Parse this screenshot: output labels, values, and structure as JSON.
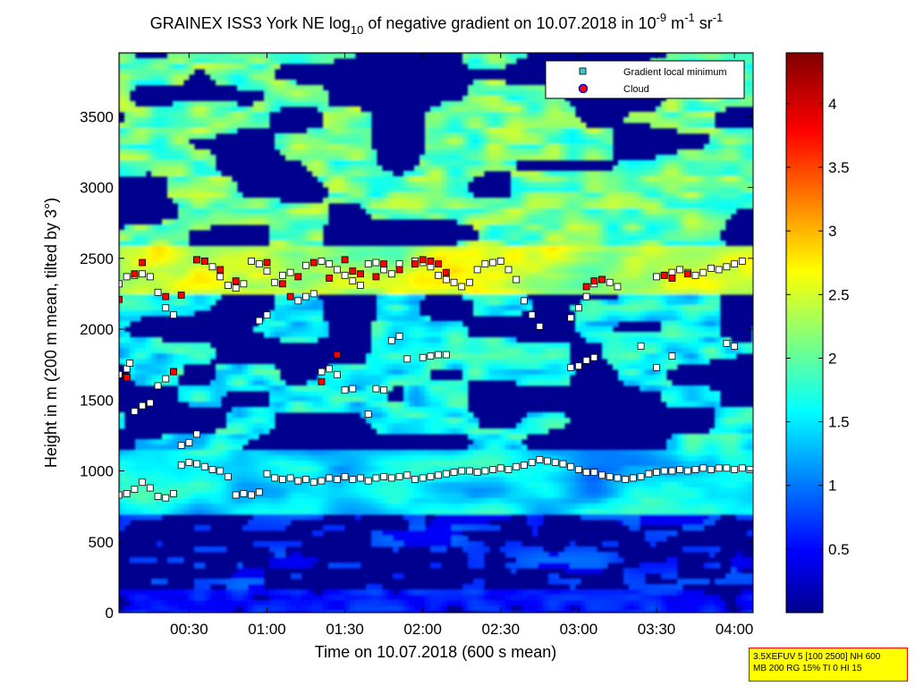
{
  "chart_data": {
    "type": "heatmap",
    "title": {
      "prefix": "GRAINEX ISS3 York NE log",
      "prefix_sub": "10",
      "middle": " of negative gradient on 10.07.2018 in 10",
      "exp1": "-9",
      "unit1": " m",
      "exp2": "-1",
      "unit2": " sr",
      "exp3": "-1"
    },
    "xlabel": "Time on 10.07.2018 (600 s mean)",
    "ylabel": "Height in m (200 m mean, tilted by 3°)",
    "x_range_hours": [
      0.05,
      4.12
    ],
    "x_ticks": [
      {
        "value": 0.5,
        "label": "00:30"
      },
      {
        "value": 1.0,
        "label": "01:00"
      },
      {
        "value": 1.5,
        "label": "01:30"
      },
      {
        "value": 2.0,
        "label": "02:00"
      },
      {
        "value": 2.5,
        "label": "02:30"
      },
      {
        "value": 3.0,
        "label": "03:00"
      },
      {
        "value": 3.5,
        "label": "03:30"
      },
      {
        "value": 4.0,
        "label": "04:00"
      }
    ],
    "ylim": [
      0,
      3950
    ],
    "y_ticks": [
      0,
      500,
      1000,
      1500,
      2000,
      2500,
      3000,
      3500
    ],
    "colorbar": {
      "range": [
        0,
        4.4
      ],
      "ticks": [
        0.5,
        1,
        1.5,
        2,
        2.5,
        3,
        3.5,
        4
      ],
      "colormap": "jet"
    },
    "legend": {
      "location": "top-right",
      "entries": [
        {
          "label": "Gradient local minimum",
          "color": "#33cccc",
          "marker": "square"
        },
        {
          "label": "Cloud",
          "color": "#ff0000",
          "edge": "#0000ff",
          "marker": "circle"
        }
      ]
    },
    "series": [
      {
        "name": "Gradient local minimum",
        "x": [
          0.05,
          0.1,
          0.15,
          0.2,
          0.25,
          0.3,
          0.35,
          0.4,
          0.45,
          0.5,
          0.55,
          0.6,
          0.65,
          0.7,
          0.75,
          0.8,
          0.85,
          0.9,
          0.95,
          1.0,
          1.05,
          1.1,
          1.15,
          1.2,
          1.25,
          1.3,
          1.35,
          1.4,
          1.45,
          1.5,
          1.55,
          1.6,
          1.65,
          1.7,
          1.75,
          1.8,
          1.85,
          1.9,
          1.95,
          2.0,
          2.05,
          2.1,
          2.15,
          2.2,
          2.25,
          2.3,
          2.35,
          2.4,
          2.45,
          2.5,
          2.55,
          2.6,
          2.65,
          2.7,
          2.75,
          2.8,
          2.85,
          2.9,
          2.95,
          3.0,
          3.05,
          3.1,
          3.15,
          3.2,
          3.25,
          3.3,
          3.35,
          3.4,
          3.45,
          3.5,
          3.55,
          3.6,
          3.65,
          3.7,
          3.75,
          3.8,
          3.85,
          3.9,
          3.95,
          4.0,
          4.05,
          4.1
        ],
        "y": [
          830,
          840,
          870,
          920,
          880,
          820,
          810,
          840,
          1040,
          1060,
          1050,
          1030,
          1010,
          1000,
          960,
          830,
          840,
          830,
          850,
          980,
          950,
          940,
          950,
          930,
          940,
          920,
          930,
          950,
          940,
          960,
          940,
          950,
          930,
          950,
          960,
          950,
          960,
          970,
          940,
          950,
          960,
          970,
          980,
          990,
          1000,
          1000,
          990,
          1000,
          1010,
          1020,
          1010,
          1030,
          1040,
          1060,
          1080,
          1070,
          1060,
          1050,
          1030,
          1010,
          990,
          990,
          970,
          960,
          950,
          940,
          950,
          960,
          980,
          990,
          1000,
          1000,
          1010,
          1000,
          1010,
          1020,
          1010,
          1020,
          1020,
          1010,
          1020,
          1010
        ]
      },
      {
        "name": "Gradient local minimum",
        "x": [
          0.05,
          0.1,
          0.15,
          0.2,
          0.25,
          0.3,
          0.35,
          0.4,
          0.55,
          0.6,
          0.65,
          0.7,
          0.75,
          0.8,
          0.85,
          0.9,
          0.95,
          1.0,
          1.05,
          1.1,
          1.15,
          1.25,
          1.35,
          1.4,
          1.45,
          1.5,
          1.55,
          1.6,
          1.65,
          1.7,
          1.75,
          1.8,
          1.85,
          1.95,
          2.0,
          2.05,
          2.1,
          2.15,
          2.2,
          2.25,
          2.3,
          2.35,
          2.4,
          2.45,
          2.5,
          2.55,
          2.6,
          2.65,
          2.7,
          2.75,
          2.95,
          3.0,
          3.05,
          3.1,
          3.15,
          3.2,
          3.25,
          3.5,
          3.55,
          3.6,
          3.65,
          3.7,
          3.75,
          3.8,
          3.85,
          3.9,
          3.95,
          4.0,
          4.05
        ],
        "y": [
          2320,
          2370,
          2380,
          2390,
          2370,
          2260,
          2150,
          2100,
          2490,
          2480,
          2440,
          2370,
          2310,
          2290,
          2320,
          2480,
          2460,
          2410,
          2330,
          2380,
          2400,
          2450,
          2480,
          2460,
          2420,
          2380,
          2340,
          2310,
          2460,
          2470,
          2420,
          2390,
          2460,
          2480,
          2470,
          2440,
          2380,
          2350,
          2330,
          2300,
          2330,
          2420,
          2460,
          2470,
          2480,
          2420,
          2350,
          2200,
          2100,
          2020,
          2080,
          2150,
          2230,
          2320,
          2350,
          2330,
          2300,
          2370,
          2380,
          2400,
          2420,
          2400,
          2380,
          2400,
          2430,
          2420,
          2440,
          2460,
          2480
        ]
      },
      {
        "name": "Gradient local minimum",
        "x": [
          0.05,
          0.1,
          0.12,
          0.15,
          0.2,
          0.25,
          0.3,
          0.35,
          0.4,
          0.45,
          0.5,
          0.55,
          0.95,
          1.0,
          1.2,
          1.25,
          1.3,
          1.35,
          1.4,
          1.45,
          1.5,
          1.55,
          1.65,
          1.7,
          1.75,
          1.8,
          1.85,
          1.9,
          2.0,
          2.05,
          2.1,
          2.15,
          2.95,
          3.0,
          3.05,
          3.1,
          3.4,
          3.5,
          3.6,
          3.95,
          4.0
        ],
        "y": [
          1680,
          1720,
          1760,
          1420,
          1460,
          1480,
          1600,
          1650,
          1700,
          1180,
          1200,
          1260,
          2060,
          2100,
          2200,
          2230,
          2250,
          1700,
          1720,
          1680,
          1570,
          1580,
          1400,
          1580,
          1570,
          1920,
          1950,
          1790,
          1800,
          1810,
          1820,
          1820,
          1730,
          1740,
          1780,
          1800,
          1880,
          1730,
          1810,
          1900,
          1880
        ]
      },
      {
        "name": "Cloud",
        "x": [
          0.05,
          0.15,
          0.2,
          0.35,
          0.45,
          0.55,
          0.6,
          0.7,
          0.8,
          1.0,
          1.1,
          1.2,
          1.3,
          1.4,
          1.5,
          1.55,
          1.6,
          1.7,
          1.75,
          1.85,
          1.95,
          2.0,
          2.05,
          2.1,
          2.15,
          3.05,
          3.1,
          3.15,
          3.55,
          3.6,
          3.7,
          0.1,
          0.4,
          1.15,
          1.35,
          1.45
        ],
        "y": [
          2210,
          2390,
          2470,
          2230,
          2240,
          2490,
          2480,
          2420,
          2340,
          2470,
          2320,
          2370,
          2470,
          2360,
          2490,
          2410,
          2390,
          2370,
          2460,
          2420,
          2460,
          2490,
          2480,
          2460,
          2400,
          2300,
          2340,
          2350,
          2380,
          2360,
          2390,
          1660,
          1700,
          2230,
          1630,
          1820
        ]
      }
    ]
  },
  "info_box": {
    "line1": "3.5XEFUV 5 [100 2500] NH 600",
    "line2": "MB 200 RG 15% TI 0 HI 15"
  },
  "colors": {
    "accent_cloud": "#ff0000",
    "marker_min": "#33cccc",
    "info_bg": "#ffff00",
    "info_border": "#ff0000"
  }
}
